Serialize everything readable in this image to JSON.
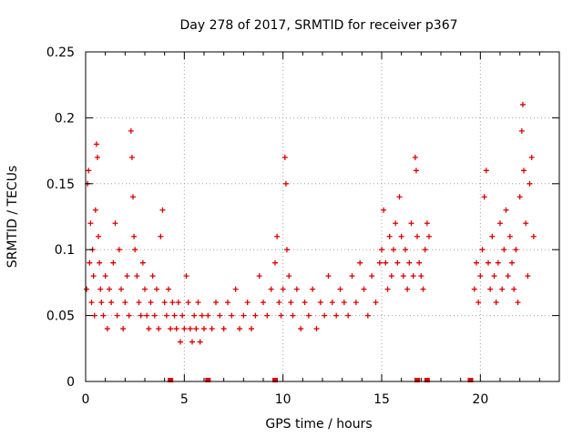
{
  "chart_data": {
    "type": "scatter",
    "title": "Day 278 of 2017, SRMTID for receiver p367",
    "xlabel": "GPS time / hours",
    "ylabel": "SRMTID / TECUs",
    "xlim": [
      0,
      24
    ],
    "ylim": [
      0,
      0.25
    ],
    "x_ticks": [
      0,
      5,
      10,
      15,
      20
    ],
    "x_tick_labels": [
      "0",
      "5",
      "10",
      "15",
      "20"
    ],
    "y_ticks": [
      0,
      0.05,
      0.1,
      0.15,
      0.2,
      0.25
    ],
    "y_tick_labels": [
      "0",
      "0.05",
      "0.1",
      "0.15",
      "0.2",
      "0.25"
    ],
    "grid": true,
    "marker": "+",
    "series_color": "#e00000",
    "gap_markers_x": [
      4.3,
      6.2,
      9.6,
      16.8,
      17.3,
      19.5
    ],
    "series": [
      {
        "name": "SRMTID",
        "points": [
          [
            0.05,
            0.07
          ],
          [
            0.1,
            0.15
          ],
          [
            0.15,
            0.16
          ],
          [
            0.2,
            0.09
          ],
          [
            0.25,
            0.12
          ],
          [
            0.3,
            0.06
          ],
          [
            0.35,
            0.1
          ],
          [
            0.4,
            0.08
          ],
          [
            0.45,
            0.05
          ],
          [
            0.5,
            0.13
          ],
          [
            0.55,
            0.18
          ],
          [
            0.6,
            0.17
          ],
          [
            0.65,
            0.11
          ],
          [
            0.7,
            0.09
          ],
          [
            0.75,
            0.07
          ],
          [
            0.8,
            0.06
          ],
          [
            0.9,
            0.05
          ],
          [
            1.0,
            0.08
          ],
          [
            1.1,
            0.04
          ],
          [
            1.2,
            0.07
          ],
          [
            1.3,
            0.06
          ],
          [
            1.4,
            0.09
          ],
          [
            1.5,
            0.12
          ],
          [
            1.6,
            0.05
          ],
          [
            1.7,
            0.1
          ],
          [
            1.8,
            0.07
          ],
          [
            1.9,
            0.04
          ],
          [
            2.0,
            0.06
          ],
          [
            2.1,
            0.08
          ],
          [
            2.2,
            0.05
          ],
          [
            2.3,
            0.19
          ],
          [
            2.35,
            0.17
          ],
          [
            2.4,
            0.14
          ],
          [
            2.45,
            0.11
          ],
          [
            2.5,
            0.1
          ],
          [
            2.6,
            0.08
          ],
          [
            2.7,
            0.06
          ],
          [
            2.8,
            0.05
          ],
          [
            2.9,
            0.09
          ],
          [
            3.0,
            0.07
          ],
          [
            3.1,
            0.05
          ],
          [
            3.2,
            0.04
          ],
          [
            3.3,
            0.06
          ],
          [
            3.4,
            0.08
          ],
          [
            3.5,
            0.05
          ],
          [
            3.6,
            0.07
          ],
          [
            3.7,
            0.04
          ],
          [
            3.8,
            0.11
          ],
          [
            3.9,
            0.13
          ],
          [
            4.0,
            0.06
          ],
          [
            4.1,
            0.05
          ],
          [
            4.2,
            0.07
          ],
          [
            4.3,
            0.04
          ],
          [
            4.4,
            0.06
          ],
          [
            4.5,
            0.05
          ],
          [
            4.6,
            0.04
          ],
          [
            4.7,
            0.06
          ],
          [
            4.8,
            0.03
          ],
          [
            4.9,
            0.05
          ],
          [
            5.0,
            0.04
          ],
          [
            5.1,
            0.08
          ],
          [
            5.2,
            0.06
          ],
          [
            5.3,
            0.04
          ],
          [
            5.4,
            0.03
          ],
          [
            5.5,
            0.05
          ],
          [
            5.6,
            0.04
          ],
          [
            5.7,
            0.06
          ],
          [
            5.8,
            0.03
          ],
          [
            5.9,
            0.05
          ],
          [
            6.0,
            0.04
          ],
          [
            6.2,
            0.05
          ],
          [
            6.4,
            0.04
          ],
          [
            6.6,
            0.06
          ],
          [
            6.8,
            0.05
          ],
          [
            7.0,
            0.04
          ],
          [
            7.2,
            0.06
          ],
          [
            7.4,
            0.05
          ],
          [
            7.6,
            0.07
          ],
          [
            7.8,
            0.04
          ],
          [
            8.0,
            0.05
          ],
          [
            8.2,
            0.06
          ],
          [
            8.4,
            0.04
          ],
          [
            8.6,
            0.05
          ],
          [
            8.8,
            0.08
          ],
          [
            9.0,
            0.06
          ],
          [
            9.2,
            0.05
          ],
          [
            9.4,
            0.07
          ],
          [
            9.6,
            0.09
          ],
          [
            9.7,
            0.11
          ],
          [
            9.8,
            0.06
          ],
          [
            9.9,
            0.05
          ],
          [
            10.0,
            0.07
          ],
          [
            10.1,
            0.17
          ],
          [
            10.15,
            0.15
          ],
          [
            10.2,
            0.1
          ],
          [
            10.3,
            0.08
          ],
          [
            10.4,
            0.06
          ],
          [
            10.5,
            0.05
          ],
          [
            10.7,
            0.07
          ],
          [
            10.9,
            0.04
          ],
          [
            11.1,
            0.06
          ],
          [
            11.3,
            0.05
          ],
          [
            11.5,
            0.07
          ],
          [
            11.7,
            0.04
          ],
          [
            11.9,
            0.06
          ],
          [
            12.1,
            0.05
          ],
          [
            12.3,
            0.08
          ],
          [
            12.5,
            0.06
          ],
          [
            12.7,
            0.05
          ],
          [
            12.9,
            0.07
          ],
          [
            13.1,
            0.06
          ],
          [
            13.3,
            0.05
          ],
          [
            13.5,
            0.08
          ],
          [
            13.7,
            0.06
          ],
          [
            13.9,
            0.09
          ],
          [
            14.1,
            0.07
          ],
          [
            14.3,
            0.05
          ],
          [
            14.5,
            0.08
          ],
          [
            14.7,
            0.06
          ],
          [
            14.9,
            0.09
          ],
          [
            15.0,
            0.1
          ],
          [
            15.1,
            0.13
          ],
          [
            15.2,
            0.09
          ],
          [
            15.3,
            0.07
          ],
          [
            15.4,
            0.11
          ],
          [
            15.5,
            0.08
          ],
          [
            15.6,
            0.1
          ],
          [
            15.7,
            0.12
          ],
          [
            15.8,
            0.09
          ],
          [
            15.9,
            0.14
          ],
          [
            16.0,
            0.11
          ],
          [
            16.1,
            0.08
          ],
          [
            16.2,
            0.1
          ],
          [
            16.3,
            0.07
          ],
          [
            16.4,
            0.09
          ],
          [
            16.5,
            0.12
          ],
          [
            16.6,
            0.08
          ],
          [
            16.7,
            0.17
          ],
          [
            16.75,
            0.16
          ],
          [
            16.8,
            0.11
          ],
          [
            16.9,
            0.09
          ],
          [
            17.0,
            0.08
          ],
          [
            17.1,
            0.07
          ],
          [
            17.2,
            0.1
          ],
          [
            17.3,
            0.12
          ],
          [
            17.4,
            0.11
          ],
          [
            19.7,
            0.07
          ],
          [
            19.8,
            0.09
          ],
          [
            19.9,
            0.06
          ],
          [
            20.0,
            0.08
          ],
          [
            20.1,
            0.1
          ],
          [
            20.2,
            0.14
          ],
          [
            20.3,
            0.16
          ],
          [
            20.4,
            0.09
          ],
          [
            20.5,
            0.07
          ],
          [
            20.6,
            0.11
          ],
          [
            20.7,
            0.08
          ],
          [
            20.8,
            0.06
          ],
          [
            20.9,
            0.09
          ],
          [
            21.0,
            0.12
          ],
          [
            21.1,
            0.07
          ],
          [
            21.2,
            0.1
          ],
          [
            21.3,
            0.13
          ],
          [
            21.4,
            0.08
          ],
          [
            21.5,
            0.11
          ],
          [
            21.6,
            0.09
          ],
          [
            21.7,
            0.07
          ],
          [
            21.8,
            0.1
          ],
          [
            21.9,
            0.06
          ],
          [
            22.0,
            0.14
          ],
          [
            22.1,
            0.19
          ],
          [
            22.15,
            0.21
          ],
          [
            22.2,
            0.16
          ],
          [
            22.3,
            0.12
          ],
          [
            22.4,
            0.08
          ],
          [
            22.5,
            0.15
          ],
          [
            22.6,
            0.17
          ],
          [
            22.7,
            0.11
          ]
        ]
      }
    ]
  }
}
